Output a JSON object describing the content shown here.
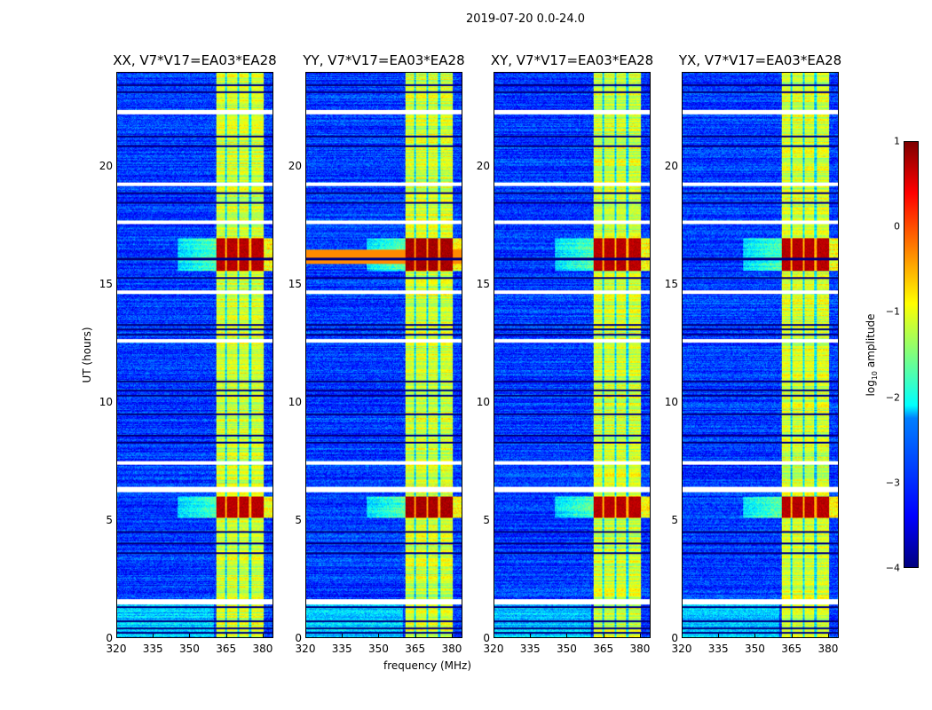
{
  "chart_data": {
    "type": "heatmap",
    "suptitle": "2019-07-20 0.0-24.0",
    "panels": [
      {
        "title": "XX, V7*V17=EA03*EA28",
        "pol": "XX"
      },
      {
        "title": "YY, V7*V17=EA03*EA28",
        "pol": "YY"
      },
      {
        "title": "XY, V7*V17=EA03*EA28",
        "pol": "XY"
      },
      {
        "title": "YX, V7*V17=EA03*EA28",
        "pol": "YX"
      }
    ],
    "xlabel": "frequency (MHz)",
    "ylabel": "UT (hours)",
    "xlim": [
      320,
      384.4
    ],
    "ylim": [
      0,
      24
    ],
    "xticks": [
      320,
      335,
      350,
      365,
      380
    ],
    "yticks": [
      0,
      5,
      10,
      15,
      20
    ],
    "colorbar": {
      "label": "log10 amplitude",
      "label_main": "log",
      "label_sub": "10",
      "label_rest": " amplitude",
      "range": [
        -4,
        1
      ],
      "ticks": [
        1,
        0,
        -1,
        -2,
        -3,
        -4
      ],
      "tick_labels": [
        "1",
        "0",
        "−1",
        "−2",
        "−3",
        "−4"
      ],
      "colormap": "jet"
    },
    "background_level": -3.1,
    "rfi_band_mhz": [
      361,
      380.5
    ],
    "rfi_level": -1.1,
    "rfi_channel_gaps_mhz": [
      365,
      370,
      375
    ],
    "strong_rfi_hours": [
      [
        15.6,
        17.0
      ],
      [
        5.1,
        6.0
      ]
    ],
    "strong_rfi_level": 0.8,
    "flagged_hours": [
      [
        22.25,
        22.45
      ],
      [
        19.2,
        19.35
      ],
      [
        17.6,
        17.75
      ],
      [
        14.6,
        14.75
      ],
      [
        12.55,
        12.7
      ],
      [
        7.35,
        7.5
      ],
      [
        6.2,
        6.4
      ],
      [
        1.4,
        1.65
      ]
    ],
    "dropout_hours": [
      23.5,
      23.2,
      21.3,
      20.9,
      18.9,
      18.5,
      16.1,
      15.3,
      13.3,
      13.1,
      12.9,
      10.9,
      10.5,
      10.3,
      9.5,
      8.6,
      8.3,
      4.5,
      4.0,
      3.6,
      1.3,
      0.7,
      0.4,
      0.2
    ]
  }
}
